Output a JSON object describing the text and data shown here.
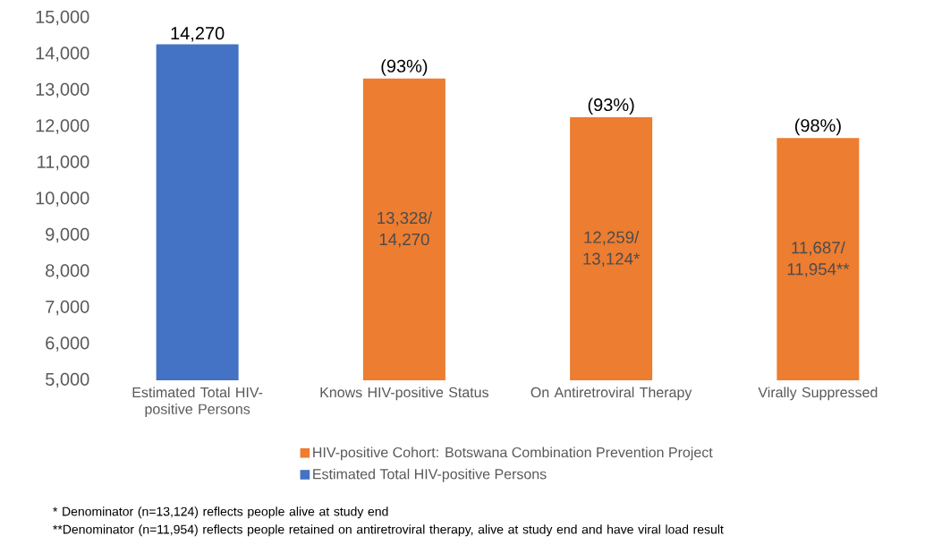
{
  "chart_data": {
    "type": "bar",
    "categories": [
      "Estimated Total HIV-positive Persons",
      "Knows HIV-positive Status",
      "On Antiretroviral Therapy",
      "Virally Suppressed"
    ],
    "series": [
      {
        "name": "HIV-positive Cohort: Botswana Combination Prevention Project",
        "color": "#ed7d31",
        "values": [
          null,
          13328,
          12259,
          11687
        ],
        "value_labels": [
          null,
          "13,328/ 14,270",
          "12,259/ 13,124*",
          "11,687/ 11,954**"
        ]
      },
      {
        "name": "Estimated Total HIV-positive Persons",
        "color": "#4472c4",
        "values": [
          14270,
          null,
          null,
          null
        ],
        "value_labels": [
          "14,270",
          null,
          null,
          null
        ]
      }
    ],
    "ylim": [
      5000,
      15000
    ],
    "yticks": [
      {
        "value": 5000,
        "label": "5,000"
      },
      {
        "value": 6000,
        "label": "6,000"
      },
      {
        "value": 7000,
        "label": "7,000"
      },
      {
        "value": 8000,
        "label": "8,000"
      },
      {
        "value": 9000,
        "label": "9,000"
      },
      {
        "value": 10000,
        "label": "10,000"
      },
      {
        "value": 11000,
        "label": "11,000"
      },
      {
        "value": 12000,
        "label": "12,000"
      },
      {
        "value": 13000,
        "label": "13,000"
      },
      {
        "value": 14000,
        "label": "14,000"
      },
      {
        "value": 15000,
        "label": "15,000"
      }
    ],
    "legend": "bottom",
    "annotations": [
      {
        "text": "(93%)",
        "x": "Knows HIV-positive Status",
        "y": 13328
      },
      {
        "text": "(93%)",
        "x": "On Antiretroviral Therapy",
        "y": 12259
      },
      {
        "text": "(98%)",
        "x": "Virally Suppressed",
        "y": 11687
      },
      "* Denominator (n=13,124) reflects people alive at study end",
      "**Denominator (n=11,954) reflects people retained on antiretroviral therapy, alive at study end and have viral load result"
    ]
  }
}
